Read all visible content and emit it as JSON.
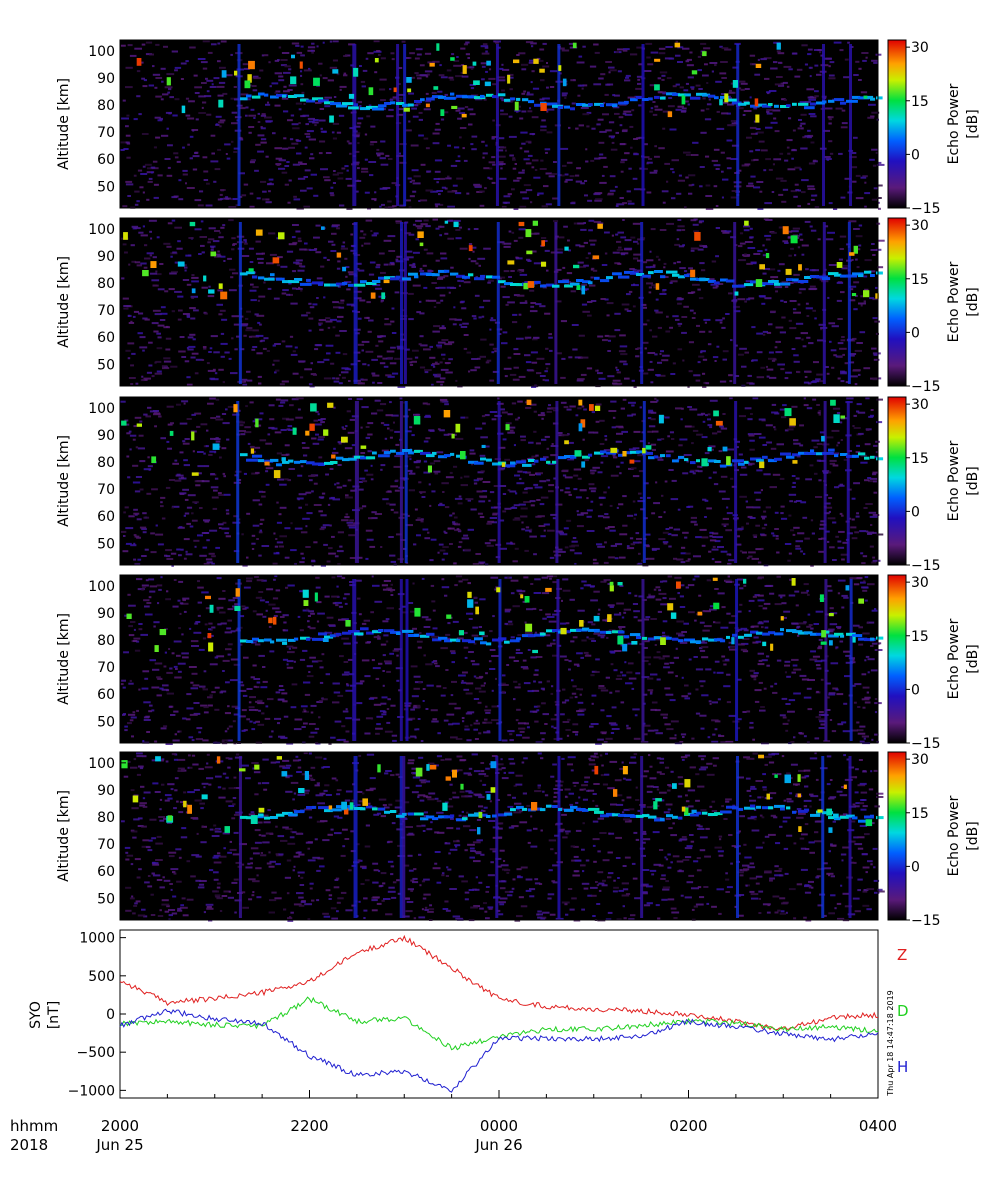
{
  "panels": [
    {
      "ylabel": "Altitude [km]",
      "yticks": [
        50,
        60,
        70,
        80,
        90,
        100
      ],
      "ylim": [
        42,
        104
      ],
      "cbar_label_line1": "Echo Power",
      "cbar_label_line2": "[dB]",
      "cbar_ticks": [
        -15,
        0,
        15,
        30
      ]
    },
    {
      "ylabel": "Altitude [km]",
      "yticks": [
        50,
        60,
        70,
        80,
        90,
        100
      ],
      "ylim": [
        42,
        104
      ],
      "cbar_label_line1": "Echo Power",
      "cbar_label_line2": "[dB]",
      "cbar_ticks": [
        -15,
        0,
        15,
        30
      ]
    },
    {
      "ylabel": "Altitude [km]",
      "yticks": [
        50,
        60,
        70,
        80,
        90,
        100
      ],
      "ylim": [
        42,
        104
      ],
      "cbar_label_line1": "Echo Power",
      "cbar_label_line2": "[dB]",
      "cbar_ticks": [
        -15,
        0,
        15,
        30
      ]
    },
    {
      "ylabel": "Altitude [km]",
      "yticks": [
        50,
        60,
        70,
        80,
        90,
        100
      ],
      "ylim": [
        42,
        104
      ],
      "cbar_label_line1": "Echo Power",
      "cbar_label_line2": "[dB]",
      "cbar_ticks": [
        -15,
        0,
        15,
        30
      ]
    },
    {
      "ylabel": "Altitude [km]",
      "yticks": [
        50,
        60,
        70,
        80,
        90,
        100
      ],
      "ylim": [
        42,
        104
      ],
      "cbar_label_line1": "Echo Power",
      "cbar_label_line2": "[dB]",
      "cbar_ticks": [
        -15,
        0,
        15,
        30
      ]
    }
  ],
  "mag_panel": {
    "ylabel_line1": "SYO",
    "ylabel_line2": "[nT]",
    "yticks": [
      "1000",
      "500",
      "0",
      "−500",
      "−1000"
    ],
    "legend": [
      {
        "label": "Z",
        "color": "#e02020"
      },
      {
        "label": "D",
        "color": "#20d020"
      },
      {
        "label": "H",
        "color": "#2020d0"
      }
    ],
    "stamp": "Thu Apr 18 14:47:18 2019"
  },
  "time_axis": {
    "row_label_line1": "hhmm",
    "row_label_line2": "2018",
    "ticks": [
      {
        "line1": "2000",
        "line2": "Jun 25"
      },
      {
        "line1": "2200",
        "line2": ""
      },
      {
        "line1": "0000",
        "line2": "Jun 26"
      },
      {
        "line1": "0200",
        "line2": ""
      },
      {
        "line1": "0400",
        "line2": ""
      }
    ]
  },
  "chart_data": [
    {
      "type": "heatmap",
      "title": "",
      "xlabel": "",
      "ylabel": "Altitude [km]",
      "colorbar_label": "Echo Power [dB]",
      "x_range": [
        "2018-06-25 20:00",
        "2018-06-26 04:00"
      ],
      "ylim": [
        42,
        104
      ],
      "clim": [
        -15,
        32
      ],
      "colormap": "rainbow",
      "panels": 5,
      "features": [
        {
          "altitude_km": 82,
          "description": "persistent echo layer 80-86 km"
        },
        {
          "altitude_km": 100,
          "description": "intermittent strong echoes near 95-103 km"
        }
      ]
    },
    {
      "type": "line",
      "title": "",
      "xlabel": "",
      "ylabel": "SYO [nT]",
      "x": [
        "20:00",
        "20:30",
        "21:00",
        "21:30",
        "22:00",
        "22:30",
        "23:00",
        "23:30",
        "00:00",
        "00:30",
        "01:00",
        "01:30",
        "02:00",
        "02:30",
        "03:00",
        "03:30",
        "04:00"
      ],
      "ylim": [
        -1100,
        1100
      ],
      "series": [
        {
          "name": "Z",
          "color": "#e02020",
          "values": [
            440,
            150,
            200,
            280,
            420,
            800,
            1000,
            600,
            200,
            100,
            60,
            40,
            0,
            -100,
            -200,
            -50,
            -10
          ]
        },
        {
          "name": "D",
          "color": "#20d020",
          "values": [
            -120,
            -100,
            -140,
            -160,
            200,
            -100,
            -50,
            -450,
            -300,
            -200,
            -200,
            -150,
            -90,
            -120,
            -200,
            -170,
            -220
          ]
        },
        {
          "name": "H",
          "color": "#2020d0",
          "values": [
            -150,
            40,
            -60,
            -120,
            -550,
            -800,
            -750,
            -1000,
            -320,
            -320,
            -330,
            -280,
            -100,
            -170,
            -260,
            -330,
            -270
          ]
        }
      ]
    }
  ]
}
